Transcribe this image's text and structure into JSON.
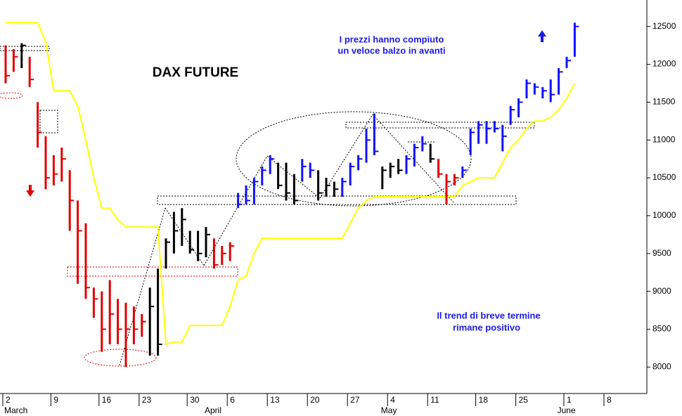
{
  "chart_data": {
    "type": "ohlc",
    "title": "DAX FUTURE",
    "annotations": [
      "I prezzi hanno compiuto",
      "un veloce balzo in avanti",
      "Il trend di breve termine",
      "rimane positivo"
    ],
    "categories": [
      "2",
      null,
      null,
      null,
      null,
      null,
      "9",
      null,
      null,
      null,
      null,
      null,
      "16",
      null,
      null,
      null,
      null,
      "23",
      null,
      null,
      null,
      null,
      null,
      "30",
      null,
      null,
      null,
      null,
      "6",
      null,
      null,
      null,
      null,
      "13",
      null,
      null,
      null,
      null,
      "20",
      null,
      null,
      null,
      null,
      "27",
      null,
      null,
      null,
      null,
      "4",
      null,
      null,
      null,
      null,
      "11",
      null,
      null,
      null,
      null,
      null,
      "18",
      null,
      null,
      null,
      null,
      "25",
      null,
      null,
      null,
      null,
      null,
      "1",
      null,
      null,
      null,
      null,
      "8"
    ],
    "months": [
      "March",
      null,
      null,
      null,
      null,
      null,
      null,
      null,
      null,
      null,
      null,
      null,
      null,
      null,
      null,
      null,
      null,
      null,
      null,
      null,
      null,
      null,
      null,
      null,
      null,
      "April",
      null,
      null,
      null,
      null,
      null,
      null,
      null,
      null,
      null,
      null,
      null,
      null,
      null,
      null,
      null,
      null,
      null,
      null,
      null,
      null,
      null,
      "May",
      null,
      null,
      null,
      null,
      null,
      null,
      null,
      null,
      null,
      null,
      null,
      null,
      null,
      null,
      null,
      null,
      null,
      null,
      null,
      null,
      null,
      "June",
      null,
      null,
      null,
      null,
      null,
      null
    ],
    "high": [
      12250,
      12200,
      12280,
      12100,
      11500,
      11050,
      10800,
      10900,
      10600,
      10200,
      9900,
      9050,
      9000,
      9150,
      8900,
      8850,
      8800,
      8700,
      9050,
      9300,
      9700,
      10050,
      10100,
      9800,
      9800,
      9850,
      9700,
      9600,
      9650,
      10300,
      10400,
      10500,
      10650,
      10800,
      10700,
      10700,
      10550,
      10750,
      10700,
      10600,
      10500,
      10450,
      10500,
      10700,
      10800,
      11150,
      11350,
      10650,
      10700,
      10750,
      10800,
      10950,
      11050,
      10950,
      10750,
      10550,
      10550,
      10650,
      11150,
      11250,
      11250,
      11250,
      11200,
      11450,
      11550,
      11800,
      11750,
      11700,
      11800,
      11950,
      12100,
      12550,
      null,
      null,
      null,
      null
    ],
    "low": [
      11750,
      11900,
      11950,
      11700,
      10900,
      10350,
      10400,
      10450,
      9800,
      9100,
      8900,
      8650,
      8200,
      8300,
      8300,
      8000,
      8300,
      8400,
      8150,
      8150,
      9300,
      9500,
      9600,
      9500,
      9400,
      9450,
      9300,
      9350,
      9400,
      10100,
      10150,
      10150,
      10400,
      10550,
      10350,
      10200,
      10150,
      10450,
      10500,
      10200,
      10250,
      10250,
      10250,
      10400,
      10600,
      10700,
      10800,
      10350,
      10500,
      10550,
      10550,
      10650,
      10850,
      10700,
      10500,
      10150,
      10400,
      10500,
      10800,
      10950,
      10950,
      11100,
      10850,
      11200,
      11300,
      11550,
      11600,
      11550,
      11500,
      11600,
      11950,
      12100,
      null,
      null,
      null,
      null
    ],
    "close": [
      11850,
      12100,
      12250,
      11800,
      11100,
      10500,
      10550,
      10750,
      10200,
      9800,
      9050,
      8900,
      8500,
      8700,
      8500,
      8500,
      8500,
      8600,
      8800,
      8300,
      9650,
      9800,
      9950,
      9550,
      9500,
      9750,
      9350,
      9500,
      9600,
      10150,
      10200,
      10450,
      10600,
      10750,
      10400,
      10300,
      10200,
      10650,
      10600,
      10300,
      10400,
      10350,
      10450,
      10650,
      10750,
      11000,
      10850,
      10600,
      10650,
      10600,
      10750,
      10900,
      10950,
      10750,
      10550,
      10450,
      10500,
      10600,
      11100,
      11200,
      11150,
      11150,
      11050,
      11400,
      11500,
      11750,
      11700,
      11650,
      11600,
      11900,
      12050,
      12500,
      null,
      null,
      null,
      null
    ],
    "bar_colors": [
      "#e00000",
      "#e00000",
      "#000000",
      "#e00000",
      "#e00000",
      "#e00000",
      "#e00000",
      "#e00000",
      "#e00000",
      "#e00000",
      "#e00000",
      "#e00000",
      "#e00000",
      "#e00000",
      "#e00000",
      "#e00000",
      "#e00000",
      "#e00000",
      "#000000",
      "#000000",
      "#000000",
      "#000000",
      "#000000",
      "#000000",
      "#000000",
      "#000000",
      "#e00000",
      "#e00000",
      "#e00000",
      "#1010ff",
      "#1010ff",
      "#1010ff",
      "#1010ff",
      "#1010ff",
      "#000000",
      "#000000",
      "#000000",
      "#1010ff",
      "#1010ff",
      "#000000",
      "#000000",
      "#000000",
      "#1010ff",
      "#1010ff",
      "#1010ff",
      "#1010ff",
      "#1010ff",
      "#000000",
      "#000000",
      "#000000",
      "#1010ff",
      "#1010ff",
      "#1010ff",
      "#000000",
      "#e00000",
      "#e00000",
      "#e00000",
      "#1010ff",
      "#1010ff",
      "#1010ff",
      "#1010ff",
      "#1010ff",
      "#1010ff",
      "#1010ff",
      "#1010ff",
      "#1010ff",
      "#1010ff",
      "#1010ff",
      "#1010ff",
      "#1010ff",
      "#1010ff",
      "#1010ff",
      null,
      null,
      null,
      null
    ],
    "stop_line": {
      "color": "#ffff00",
      "values": [
        12550,
        12550,
        12550,
        12550,
        12550,
        12300,
        11650,
        11650,
        11650,
        11450,
        11000,
        10500,
        10100,
        10100,
        9950,
        9850,
        9850,
        9850,
        9850,
        9850,
        8300,
        8330,
        8330,
        8550,
        8550,
        8550,
        8550,
        8550,
        8800,
        9150,
        9200,
        9500,
        9700,
        9700,
        9700,
        9700,
        9700,
        9700,
        9700,
        9700,
        9700,
        9700,
        9700,
        9900,
        10100,
        10200,
        10250,
        10250,
        10250,
        10250,
        10250,
        10250,
        10250,
        10250,
        10250,
        10250,
        10250,
        10400,
        10450,
        10500,
        10500,
        10500,
        10700,
        10900,
        11000,
        11150,
        11250,
        11250,
        11300,
        11400,
        11550,
        11750,
        null,
        null,
        null,
        null
      ]
    },
    "ylim": [
      7650,
      12850
    ],
    "yticks": [
      8000,
      8500,
      9000,
      9500,
      10000,
      10500,
      11000,
      11500,
      12000,
      12500
    ],
    "grid": false
  }
}
